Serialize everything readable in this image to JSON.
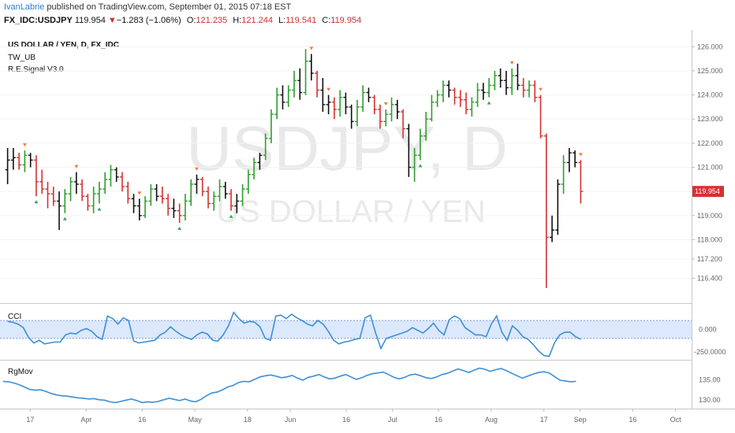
{
  "header": {
    "author": "IvanLabrie",
    "published": " published on TradingView.com, September 01, 2015 07:18 EST",
    "symbol": "FX_IDC:USDJPY",
    "last": "119.954",
    "change": "−1.283 (−1.06%)",
    "o_label": "O:",
    "o_value": "121.235",
    "h_label": "H:",
    "h_value": "121.244",
    "l_label": "L:",
    "l_value": "119.541",
    "c_label": "C:",
    "c_value": "119.954"
  },
  "legend": {
    "title": "US DOLLAR / YEN, D, FX_IDC",
    "study1": "TW_UB",
    "study2": "R.E.Signal V3.0"
  },
  "watermark": {
    "big": "USDJPY, D",
    "small": "US DOLLAR / YEN"
  },
  "colors": {
    "up": "#2e9e2e",
    "down": "#d63131",
    "neutral": "#111111",
    "cci_line": "#3d8fd6",
    "cci_band": "#dce8fb",
    "price_tag": "#d63131",
    "signal_sell": "#f07c3c",
    "signal_buy": "#3aa35a"
  },
  "chart_data": [
    {
      "type": "candlestick",
      "pane": "price",
      "yticks": [
        "126.000",
        "125.000",
        "124.000",
        "123.000",
        "122.000",
        "121.000",
        "120.000",
        "119.000",
        "118.000",
        "117.200",
        "116.400"
      ],
      "ylim": [
        115.6,
        126.5
      ],
      "last_price_label": "119.954",
      "bars": [
        [
          120.9,
          121.8,
          120.3,
          121.3,
          "n"
        ],
        [
          121.3,
          121.8,
          120.9,
          121.4,
          "n"
        ],
        [
          121.4,
          121.6,
          120.9,
          121.1,
          "d"
        ],
        [
          121.1,
          121.7,
          120.8,
          121.5,
          "u"
        ],
        [
          121.5,
          121.6,
          121.0,
          121.3,
          "n"
        ],
        [
          121.3,
          121.5,
          119.8,
          120.4,
          "d"
        ],
        [
          120.4,
          120.9,
          119.9,
          120.1,
          "d"
        ],
        [
          120.1,
          120.4,
          119.3,
          119.9,
          "d"
        ],
        [
          119.9,
          120.2,
          119.4,
          119.6,
          "d"
        ],
        [
          119.6,
          120.0,
          118.4,
          119.4,
          "n"
        ],
        [
          119.4,
          120.1,
          119.1,
          119.9,
          "u"
        ],
        [
          119.9,
          120.6,
          119.6,
          120.4,
          "u"
        ],
        [
          120.4,
          120.8,
          119.9,
          120.3,
          "n"
        ],
        [
          120.3,
          120.5,
          119.6,
          119.8,
          "d"
        ],
        [
          119.8,
          119.9,
          119.2,
          119.4,
          "d"
        ],
        [
          119.4,
          120.2,
          119.1,
          119.9,
          "u"
        ],
        [
          119.9,
          120.4,
          119.5,
          120.1,
          "u"
        ],
        [
          120.1,
          120.8,
          119.9,
          120.5,
          "u"
        ],
        [
          120.5,
          121.1,
          120.2,
          120.9,
          "u"
        ],
        [
          120.9,
          121.0,
          120.4,
          120.6,
          "n"
        ],
        [
          120.6,
          120.8,
          120.0,
          120.2,
          "d"
        ],
        [
          120.2,
          120.4,
          119.5,
          119.7,
          "d"
        ],
        [
          119.7,
          119.9,
          119.1,
          119.4,
          "n"
        ],
        [
          119.4,
          119.7,
          118.8,
          119.0,
          "n"
        ],
        [
          119.0,
          119.8,
          118.9,
          119.6,
          "u"
        ],
        [
          119.6,
          120.3,
          119.4,
          120.1,
          "u"
        ],
        [
          120.1,
          120.3,
          119.6,
          119.8,
          "n"
        ],
        [
          119.8,
          120.2,
          119.5,
          119.7,
          "d"
        ],
        [
          119.7,
          119.9,
          119.0,
          119.3,
          "d"
        ],
        [
          119.3,
          119.7,
          118.9,
          119.2,
          "n"
        ],
        [
          119.2,
          119.5,
          118.7,
          119.0,
          "d"
        ],
        [
          119.0,
          119.9,
          118.8,
          119.6,
          "u"
        ],
        [
          119.6,
          120.5,
          119.4,
          120.3,
          "u"
        ],
        [
          120.3,
          120.7,
          119.9,
          120.5,
          "n"
        ],
        [
          120.5,
          120.6,
          119.8,
          120.0,
          "d"
        ],
        [
          120.0,
          120.2,
          119.3,
          119.5,
          "d"
        ],
        [
          119.5,
          120.0,
          119.2,
          119.8,
          "u"
        ],
        [
          119.8,
          120.5,
          119.6,
          120.2,
          "u"
        ],
        [
          120.2,
          120.4,
          119.7,
          119.9,
          "n"
        ],
        [
          119.9,
          120.1,
          119.2,
          119.4,
          "d"
        ],
        [
          119.4,
          119.9,
          119.1,
          119.6,
          "n"
        ],
        [
          119.6,
          120.3,
          119.4,
          120.1,
          "u"
        ],
        [
          120.1,
          120.9,
          119.9,
          120.7,
          "u"
        ],
        [
          120.7,
          121.4,
          120.5,
          121.2,
          "u"
        ],
        [
          121.2,
          121.6,
          120.9,
          121.5,
          "n"
        ],
        [
          121.5,
          122.4,
          121.3,
          122.2,
          "u"
        ],
        [
          122.2,
          123.4,
          122.0,
          123.2,
          "u"
        ],
        [
          123.2,
          124.3,
          123.0,
          124.0,
          "u"
        ],
        [
          124.0,
          124.4,
          123.4,
          123.7,
          "n"
        ],
        [
          123.7,
          124.4,
          123.5,
          124.2,
          "u"
        ],
        [
          124.2,
          125.0,
          123.9,
          124.6,
          "u"
        ],
        [
          124.6,
          125.1,
          123.8,
          124.1,
          "n"
        ],
        [
          124.1,
          125.9,
          124.0,
          125.4,
          "u"
        ],
        [
          125.4,
          125.7,
          124.6,
          124.9,
          "n"
        ],
        [
          124.9,
          125.0,
          123.9,
          124.2,
          "d"
        ],
        [
          124.2,
          124.7,
          123.3,
          123.6,
          "n"
        ],
        [
          123.6,
          124.0,
          123.2,
          123.7,
          "n"
        ],
        [
          123.7,
          123.9,
          123.0,
          123.4,
          "d"
        ],
        [
          123.4,
          124.2,
          123.1,
          123.9,
          "u"
        ],
        [
          123.9,
          124.1,
          123.2,
          123.5,
          "n"
        ],
        [
          123.5,
          123.6,
          122.6,
          122.9,
          "n"
        ],
        [
          122.9,
          123.8,
          122.7,
          123.5,
          "u"
        ],
        [
          123.5,
          124.4,
          123.3,
          124.1,
          "u"
        ],
        [
          124.1,
          124.3,
          123.7,
          123.9,
          "n"
        ],
        [
          123.9,
          124.0,
          123.2,
          123.4,
          "d"
        ],
        [
          123.4,
          123.6,
          122.6,
          122.9,
          "d"
        ],
        [
          122.9,
          123.4,
          122.7,
          123.2,
          "u"
        ],
        [
          123.2,
          123.9,
          122.9,
          123.6,
          "u"
        ],
        [
          123.6,
          123.8,
          123.0,
          123.3,
          "n"
        ],
        [
          123.3,
          123.4,
          122.2,
          122.6,
          "d"
        ],
        [
          122.6,
          122.8,
          120.6,
          121.0,
          "n"
        ],
        [
          121.0,
          121.8,
          120.4,
          121.5,
          "u"
        ],
        [
          121.5,
          122.6,
          121.3,
          122.3,
          "u"
        ],
        [
          122.3,
          123.3,
          122.1,
          123.0,
          "u"
        ],
        [
          123.0,
          124.0,
          122.9,
          123.7,
          "u"
        ],
        [
          123.7,
          124.2,
          123.5,
          124.0,
          "u"
        ],
        [
          124.0,
          124.6,
          123.7,
          124.4,
          "u"
        ],
        [
          124.4,
          124.6,
          123.9,
          124.2,
          "n"
        ],
        [
          124.2,
          124.3,
          123.6,
          123.9,
          "d"
        ],
        [
          123.9,
          124.2,
          123.5,
          123.8,
          "d"
        ],
        [
          123.8,
          124.1,
          123.2,
          123.4,
          "d"
        ],
        [
          123.4,
          123.9,
          123.1,
          123.7,
          "u"
        ],
        [
          123.7,
          124.5,
          123.5,
          124.2,
          "u"
        ],
        [
          124.2,
          124.5,
          123.8,
          124.1,
          "n"
        ],
        [
          124.1,
          124.7,
          123.9,
          124.4,
          "u"
        ],
        [
          124.4,
          125.0,
          124.2,
          124.8,
          "u"
        ],
        [
          124.8,
          125.1,
          124.3,
          124.6,
          "n"
        ],
        [
          124.6,
          125.0,
          124.0,
          124.3,
          "n"
        ],
        [
          124.3,
          125.1,
          124.0,
          124.8,
          "u"
        ],
        [
          124.8,
          125.3,
          124.2,
          124.4,
          "n"
        ],
        [
          124.4,
          124.7,
          123.9,
          124.2,
          "d"
        ],
        [
          124.2,
          124.6,
          123.9,
          124.4,
          "u"
        ],
        [
          124.4,
          124.6,
          123.7,
          123.9,
          "d"
        ],
        [
          123.9,
          124.0,
          122.2,
          122.3,
          "d"
        ],
        [
          122.3,
          122.4,
          116.0,
          118.1,
          "d"
        ],
        [
          118.1,
          119.0,
          117.9,
          118.4,
          "n"
        ],
        [
          118.4,
          120.5,
          118.2,
          120.3,
          "n"
        ],
        [
          120.3,
          121.5,
          119.9,
          121.2,
          "u"
        ],
        [
          121.2,
          121.8,
          120.8,
          121.6,
          "n"
        ],
        [
          121.6,
          121.7,
          121.0,
          121.2,
          "n"
        ],
        [
          121.2,
          121.3,
          119.5,
          120.0,
          "d"
        ]
      ],
      "signals": [
        {
          "bar": 3,
          "dir": "sell"
        },
        {
          "bar": 5,
          "dir": "buy"
        },
        {
          "bar": 10,
          "dir": "buy"
        },
        {
          "bar": 12,
          "dir": "sell"
        },
        {
          "bar": 16,
          "dir": "buy"
        },
        {
          "bar": 23,
          "dir": "sell"
        },
        {
          "bar": 30,
          "dir": "buy"
        },
        {
          "bar": 33,
          "dir": "sell"
        },
        {
          "bar": 39,
          "dir": "buy"
        },
        {
          "bar": 53,
          "dir": "sell"
        },
        {
          "bar": 56,
          "dir": "sell"
        },
        {
          "bar": 66,
          "dir": "sell"
        },
        {
          "bar": 72,
          "dir": "buy"
        },
        {
          "bar": 84,
          "dir": "buy"
        },
        {
          "bar": 88,
          "dir": "sell"
        },
        {
          "bar": 93,
          "dir": "sell"
        },
        {
          "bar": 100,
          "dir": "sell"
        }
      ]
    },
    {
      "type": "line",
      "pane": "CCI",
      "label": "CCI",
      "yticks": [
        "0.000",
        "-250.0000"
      ],
      "ylim": [
        -320,
        250
      ],
      "band": [
        -100,
        100
      ],
      "values": [
        90,
        80,
        60,
        20,
        -90,
        -150,
        -120,
        -160,
        -150,
        -140,
        -140,
        -60,
        -40,
        -50,
        -10,
        10,
        -20,
        -80,
        -110,
        150,
        120,
        60,
        130,
        100,
        -130,
        -150,
        -140,
        -130,
        -120,
        -60,
        -30,
        30,
        -20,
        -60,
        -90,
        -110,
        -60,
        -30,
        -50,
        -120,
        -130,
        -60,
        40,
        190,
        120,
        70,
        90,
        80,
        30,
        -100,
        -120,
        150,
        160,
        120,
        170,
        130,
        100,
        60,
        40,
        100,
        60,
        -20,
        -120,
        -160,
        -140,
        -130,
        -110,
        -100,
        130,
        160,
        -40,
        -210,
        -100,
        -80,
        -60,
        -40,
        -20,
        20,
        -10,
        -40,
        10,
        70,
        -10,
        -60,
        110,
        150,
        120,
        20,
        -20,
        -60,
        -60,
        -80,
        60,
        150,
        -30,
        -120,
        40,
        -10,
        -80,
        -110,
        -170,
        -240,
        -290,
        -300,
        -150,
        -60,
        -30,
        -30,
        -80,
        -110
      ]
    },
    {
      "type": "line",
      "pane": "RgMov",
      "label": "RgMov",
      "yticks": [
        "135.00",
        "130.00"
      ],
      "ylim": [
        128,
        139
      ],
      "values": [
        134.6,
        134.5,
        134.2,
        133.8,
        133.2,
        132.6,
        132.4,
        132.5,
        132.1,
        131.6,
        131.2,
        131.0,
        130.9,
        130.7,
        130.5,
        130.4,
        130.2,
        130.3,
        130.0,
        129.9,
        129.5,
        129.3,
        129.6,
        129.9,
        130.2,
        129.8,
        129.3,
        129.5,
        129.4,
        129.6,
        130.0,
        130.4,
        130.1,
        129.8,
        130.2,
        129.7,
        129.5,
        130.1,
        131.0,
        131.7,
        131.9,
        132.5,
        133.2,
        133.6,
        134.3,
        134.6,
        134.5,
        135.1,
        135.7,
        136.0,
        136.2,
        135.9,
        135.5,
        135.7,
        136.1,
        135.4,
        134.9,
        135.6,
        135.9,
        136.3,
        135.7,
        135.2,
        135.4,
        135.9,
        136.3,
        135.7,
        135.1,
        135.5,
        136.1,
        136.5,
        136.7,
        136.9,
        136.3,
        135.6,
        135.2,
        135.6,
        136.2,
        136.4,
        136.0,
        135.5,
        135.3,
        135.7,
        136.3,
        136.6,
        137.2,
        137.7,
        137.3,
        136.8,
        137.4,
        137.9,
        137.6,
        137.1,
        137.5,
        137.8,
        137.3,
        136.6,
        136.0,
        135.4,
        135.9,
        136.4,
        136.8,
        137.0,
        136.7,
        135.8,
        134.9,
        134.7,
        134.5,
        134.6
      ]
    }
  ],
  "xaxis": {
    "labels": [
      {
        "text": "17",
        "x": 0.01
      },
      {
        "text": "Apr",
        "x": 0.095
      },
      {
        "text": "16",
        "x": 0.18
      },
      {
        "text": "May",
        "x": 0.26
      },
      {
        "text": "18",
        "x": 0.34
      },
      {
        "text": "Jun",
        "x": 0.405
      },
      {
        "text": "16",
        "x": 0.49
      },
      {
        "text": "Jul",
        "x": 0.56
      },
      {
        "text": "16",
        "x": 0.63
      },
      {
        "text": "Aug",
        "x": 0.71
      },
      {
        "text": "17",
        "x": 0.79
      },
      {
        "text": "Sep",
        "x": 0.845
      },
      {
        "text": "16",
        "x": 0.925
      },
      {
        "text": "Oct",
        "x": 0.99
      }
    ]
  }
}
